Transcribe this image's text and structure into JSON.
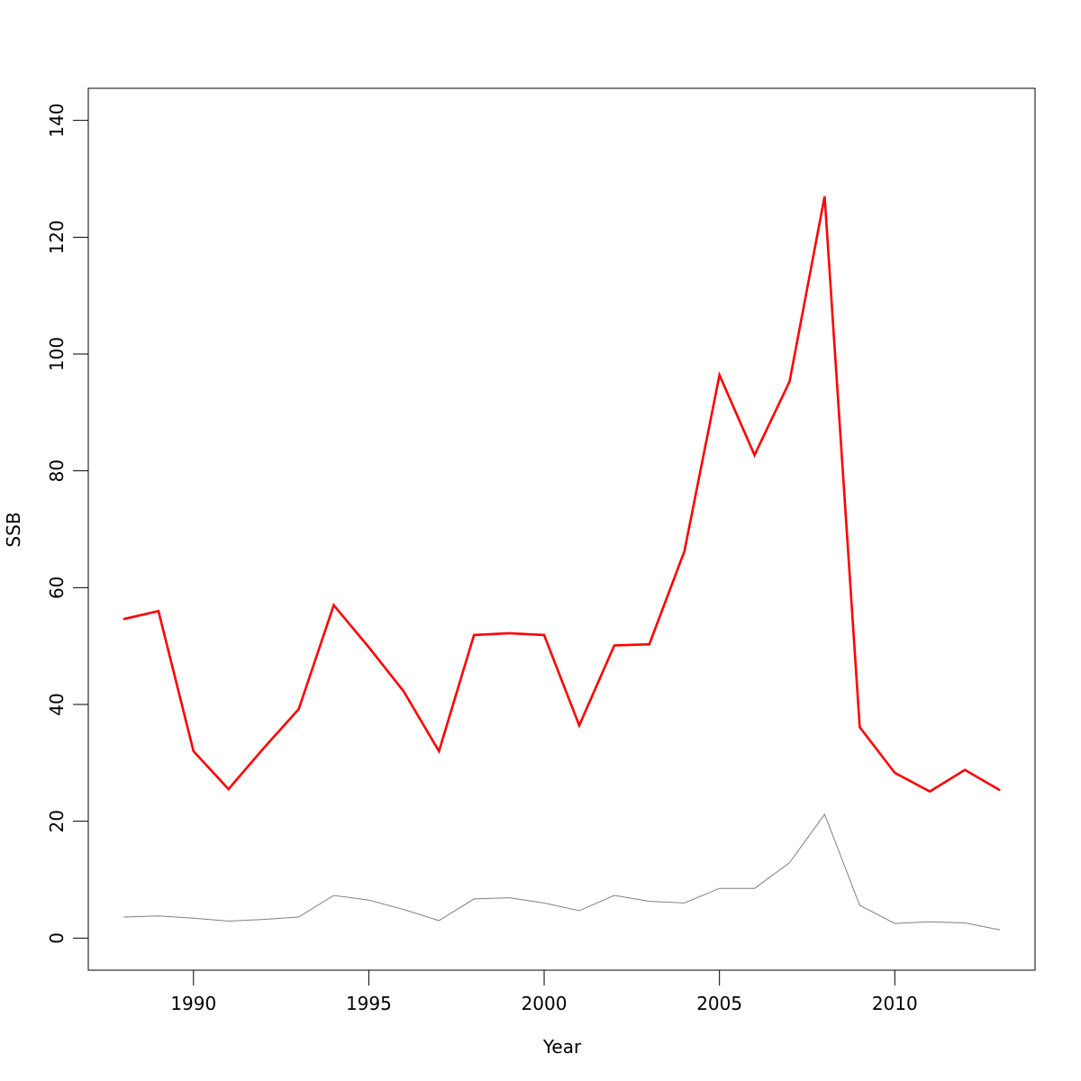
{
  "chart_data": {
    "type": "line",
    "title": "",
    "xlabel": "Year",
    "ylabel": "SSB",
    "xlim": [
      1987,
      2014
    ],
    "ylim": [
      -5.5,
      145.5
    ],
    "x_ticks": [
      1990,
      1995,
      2000,
      2005,
      2010
    ],
    "y_ticks": [
      0,
      20,
      40,
      60,
      80,
      100,
      120,
      140
    ],
    "grid": false,
    "x": [
      1988,
      1989,
      1990,
      1991,
      1992,
      1993,
      1994,
      1995,
      1996,
      1997,
      1998,
      1999,
      2000,
      2001,
      2002,
      2003,
      2004,
      2005,
      2006,
      2007,
      2008,
      2009,
      2010,
      2011,
      2012,
      2013
    ],
    "series": [
      {
        "color": "#ff0000",
        "stroke": "thick",
        "values": [
          54.6,
          56.0,
          32.0,
          25.5,
          32.5,
          39.2,
          57.0,
          49.8,
          42.2,
          32.0,
          51.9,
          52.2,
          51.9,
          36.4,
          50.1,
          50.3,
          66.2,
          96.4,
          82.7,
          95.3,
          127.0,
          36.1,
          28.3,
          25.1,
          28.8,
          25.3
        ]
      },
      {
        "color": "#808080",
        "stroke": "thin",
        "values": [
          3.6,
          3.8,
          3.4,
          2.9,
          3.2,
          3.6,
          7.3,
          6.5,
          4.9,
          3.0,
          6.7,
          6.9,
          6.0,
          4.7,
          7.3,
          6.3,
          6.0,
          8.5,
          8.5,
          12.9,
          21.2,
          5.6,
          2.5,
          2.8,
          2.6,
          1.4
        ]
      }
    ]
  }
}
